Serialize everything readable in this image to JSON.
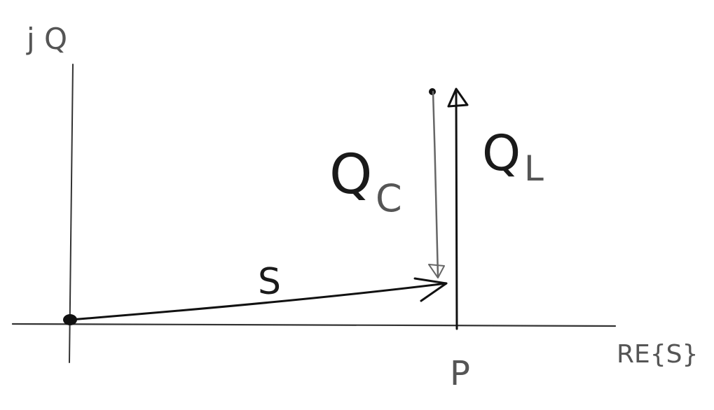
{
  "axes": {
    "vertical_label": "j Q",
    "horizontal_label": "RE{S}"
  },
  "vectors": {
    "s_label": "S",
    "qc_label_main": "Q",
    "qc_label_sub": "C",
    "ql_label_main": "Q",
    "ql_label_sub": "L",
    "p_label": "P"
  },
  "colors": {
    "ink": "#1a1a1a",
    "ink_light": "#555555",
    "background": "#ffffff"
  }
}
